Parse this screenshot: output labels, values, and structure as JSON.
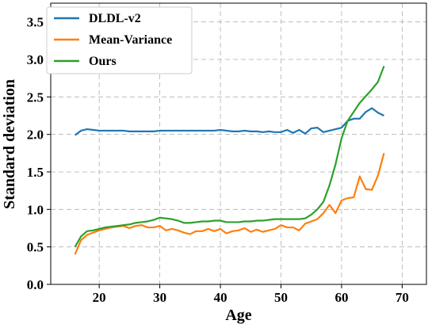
{
  "chart_data": {
    "type": "line",
    "title": "",
    "xlabel": "Age",
    "ylabel": "Standard deviation",
    "xlim": [
      12,
      74
    ],
    "ylim": [
      0.0,
      3.75
    ],
    "xticks": [
      20,
      30,
      40,
      50,
      60,
      70
    ],
    "yticks": [
      0.0,
      0.5,
      1.0,
      1.5,
      2.0,
      2.5,
      3.0,
      3.5
    ],
    "xtick_labels": [
      "20",
      "30",
      "40",
      "50",
      "60",
      "70"
    ],
    "ytick_labels": [
      "0.0",
      "0.5",
      "1.0",
      "1.5",
      "2.0",
      "2.5",
      "3.0",
      "3.5"
    ],
    "grid": true,
    "legend_position": "top-left",
    "x": [
      16,
      17,
      18,
      19,
      20,
      21,
      22,
      23,
      24,
      25,
      26,
      27,
      28,
      29,
      30,
      31,
      32,
      33,
      34,
      35,
      36,
      37,
      38,
      39,
      40,
      41,
      42,
      43,
      44,
      45,
      46,
      47,
      48,
      49,
      50,
      51,
      52,
      53,
      54,
      55,
      56,
      57,
      58,
      59,
      60,
      61,
      62,
      63,
      64,
      65,
      66,
      67
    ],
    "series": [
      {
        "name": "DLDL-v2",
        "color": "#1f77b4",
        "values": [
          1.99,
          2.05,
          2.07,
          2.06,
          2.05,
          2.05,
          2.05,
          2.05,
          2.05,
          2.04,
          2.04,
          2.04,
          2.04,
          2.04,
          2.05,
          2.05,
          2.05,
          2.05,
          2.05,
          2.05,
          2.05,
          2.05,
          2.05,
          2.05,
          2.06,
          2.05,
          2.04,
          2.04,
          2.05,
          2.04,
          2.04,
          2.03,
          2.04,
          2.03,
          2.03,
          2.06,
          2.02,
          2.06,
          2.01,
          2.08,
          2.09,
          2.03,
          2.05,
          2.07,
          2.09,
          2.18,
          2.21,
          2.21,
          2.3,
          2.35,
          2.29,
          2.25
        ]
      },
      {
        "name": "Mean-Variance",
        "color": "#ff7f0e",
        "values": [
          0.4,
          0.59,
          0.66,
          0.69,
          0.72,
          0.74,
          0.76,
          0.77,
          0.78,
          0.75,
          0.78,
          0.79,
          0.76,
          0.76,
          0.78,
          0.72,
          0.74,
          0.72,
          0.69,
          0.67,
          0.71,
          0.71,
          0.74,
          0.71,
          0.74,
          0.68,
          0.71,
          0.72,
          0.75,
          0.7,
          0.73,
          0.7,
          0.72,
          0.74,
          0.79,
          0.76,
          0.76,
          0.72,
          0.81,
          0.84,
          0.87,
          0.95,
          1.06,
          0.95,
          1.12,
          1.15,
          1.16,
          1.44,
          1.27,
          1.26,
          1.45,
          1.75
        ]
      },
      {
        "name": "Ours",
        "color": "#2ca02c",
        "values": [
          0.5,
          0.64,
          0.71,
          0.72,
          0.74,
          0.76,
          0.77,
          0.78,
          0.79,
          0.8,
          0.82,
          0.83,
          0.84,
          0.86,
          0.89,
          0.88,
          0.87,
          0.85,
          0.82,
          0.82,
          0.83,
          0.84,
          0.84,
          0.85,
          0.85,
          0.83,
          0.83,
          0.83,
          0.84,
          0.84,
          0.85,
          0.85,
          0.86,
          0.87,
          0.87,
          0.87,
          0.87,
          0.87,
          0.88,
          0.93,
          1.0,
          1.1,
          1.32,
          1.6,
          1.95,
          2.18,
          2.3,
          2.42,
          2.51,
          2.6,
          2.7,
          2.91
        ]
      }
    ]
  }
}
